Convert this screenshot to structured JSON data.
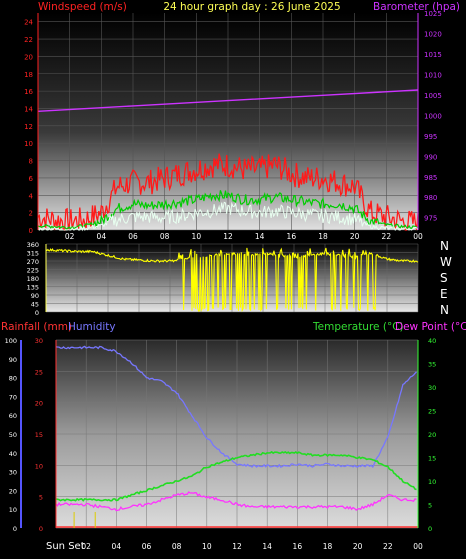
{
  "colors": {
    "wind_gust": "#ff1a1a",
    "wind_avg": "#00cc00",
    "wind_min": "#e8fff0",
    "barometer": "#cc33ff",
    "direction": "#ffff00",
    "humidity": "#7777ff",
    "temperature": "#22dd22",
    "dewpoint": "#ff33ff",
    "rain": "#ff3333",
    "title": "#ffff55",
    "axis_left_bottom": "#5555ff",
    "axis_right_bottom": "#33ff33"
  },
  "header": {
    "left": "Windspeed (m/s)",
    "center": "24 hour graph day : 26 June 2025",
    "right": "Barometer (hpa)"
  },
  "bottom_header": {
    "rain": "Rainfall (mm)",
    "humidity": "Humidity",
    "temperature": "Temperature (°C)",
    "dewpoint": "Dew Point (°C)"
  },
  "compass": [
    "N",
    "W",
    "S",
    "E",
    "N"
  ],
  "x_axis": {
    "labels": [
      "02",
      "04",
      "06",
      "08",
      "10",
      "12",
      "14",
      "16",
      "18",
      "20",
      "22",
      "00"
    ],
    "bottom_prefix": "Sun Set"
  },
  "chart_data": [
    {
      "type": "line",
      "title": "24 hour graph day : 26 June 2025",
      "x_range_hours": [
        0,
        24
      ],
      "left_axis": {
        "label": "Windspeed (m/s)",
        "ylim": [
          0,
          25
        ],
        "ticks": [
          0,
          2,
          4,
          6,
          8,
          10,
          12,
          14,
          16,
          18,
          20,
          22,
          24
        ]
      },
      "right_axis": {
        "label": "Barometer (hpa)",
        "ylim": [
          972,
          1025
        ],
        "ticks": [
          975,
          980,
          985,
          990,
          995,
          1000,
          1005,
          1010,
          1015,
          1020,
          1025
        ]
      },
      "series": [
        {
          "key": "gust",
          "x": [
            0,
            1,
            2,
            3,
            4,
            5,
            6,
            7,
            8,
            9,
            10,
            11,
            12,
            13,
            14,
            15,
            16,
            17,
            18,
            19,
            20,
            21,
            22,
            23,
            24
          ],
          "values": [
            1.5,
            1.2,
            1.0,
            1.2,
            2.0,
            5.0,
            5.5,
            5.5,
            6.0,
            6.5,
            7.0,
            7.5,
            7.5,
            7.0,
            7.0,
            7.5,
            6.5,
            6.0,
            6.0,
            5.5,
            5.0,
            2.0,
            1.5,
            1.0,
            0.8
          ]
        },
        {
          "key": "avg",
          "x": [
            0,
            1,
            2,
            3,
            4,
            5,
            6,
            7,
            8,
            9,
            10,
            11,
            12,
            13,
            14,
            15,
            16,
            17,
            18,
            19,
            20,
            21,
            22,
            23,
            24
          ],
          "values": [
            0.5,
            0.4,
            0.3,
            0.5,
            1.0,
            2.5,
            3.0,
            2.8,
            3.0,
            3.2,
            3.5,
            4.0,
            4.0,
            3.5,
            3.5,
            3.8,
            3.5,
            3.2,
            3.0,
            3.0,
            2.5,
            1.0,
            0.6,
            0.4,
            0.3
          ]
        },
        {
          "key": "min",
          "x": [
            0,
            1,
            2,
            3,
            4,
            5,
            6,
            7,
            8,
            9,
            10,
            11,
            12,
            13,
            14,
            15,
            16,
            17,
            18,
            19,
            20,
            21,
            22,
            23,
            24
          ],
          "values": [
            0.1,
            0.1,
            0.0,
            0.2,
            0.5,
            1.2,
            1.5,
            1.5,
            1.4,
            1.6,
            2.0,
            2.2,
            2.5,
            2.2,
            2.0,
            2.2,
            2.0,
            1.8,
            1.6,
            1.5,
            1.2,
            0.4,
            0.2,
            0.1,
            0.1
          ]
        },
        {
          "key": "barometer",
          "axis": "right",
          "x": [
            0,
            6,
            12,
            18,
            24
          ],
          "values": [
            1001.0,
            1002.3,
            1003.6,
            1004.9,
            1006.2
          ]
        }
      ]
    },
    {
      "type": "scatter",
      "title": "",
      "x_range_hours": [
        0,
        24
      ],
      "left_axis": {
        "ylim": [
          0,
          360
        ],
        "ticks": [
          0,
          45,
          90,
          135,
          180,
          225,
          270,
          315,
          360
        ]
      },
      "series": [
        {
          "key": "direction",
          "x": [
            0,
            1,
            2,
            3,
            4,
            5,
            6,
            7,
            8,
            9,
            10,
            11,
            12,
            13,
            14,
            15,
            16,
            17,
            18,
            19,
            20,
            21,
            22,
            23,
            24
          ],
          "values": [
            330,
            325,
            320,
            320,
            300,
            280,
            275,
            270,
            270,
            280,
            290,
            300,
            310,
            300,
            310,
            300,
            290,
            300,
            310,
            300,
            290,
            310,
            280,
            270,
            270
          ]
        }
      ]
    },
    {
      "type": "line",
      "title": "",
      "x_range_hours": [
        0,
        24
      ],
      "left_axis": {
        "label": "Rainfall (mm)",
        "ylim": [
          0,
          30
        ],
        "ticks": [
          0,
          5,
          10,
          15,
          20,
          25,
          30
        ]
      },
      "left_axis_outer": {
        "label": "Humidity",
        "ylim": [
          0,
          100
        ],
        "ticks": [
          0,
          10,
          20,
          30,
          40,
          50,
          60,
          70,
          80,
          90,
          100
        ]
      },
      "right_axis": {
        "label": "Temperature (°C)",
        "ylim": [
          0,
          40
        ],
        "ticks": [
          0,
          5,
          10,
          15,
          20,
          25,
          30,
          35,
          40
        ]
      },
      "series": [
        {
          "key": "humidity",
          "axis": "outer",
          "x": [
            0,
            1,
            2,
            3,
            4,
            5,
            6,
            7,
            8,
            9,
            10,
            11,
            12,
            13,
            14,
            15,
            16,
            17,
            18,
            19,
            20,
            21,
            22,
            23,
            24
          ],
          "values": [
            96,
            96,
            96,
            96,
            94,
            88,
            80,
            78,
            72,
            60,
            48,
            40,
            34,
            33,
            33,
            33,
            34,
            33,
            34,
            33,
            33,
            33,
            48,
            76,
            84
          ]
        },
        {
          "key": "temperature",
          "axis": "right",
          "x": [
            0,
            1,
            2,
            3,
            4,
            5,
            6,
            7,
            8,
            9,
            10,
            11,
            12,
            13,
            14,
            15,
            16,
            17,
            18,
            19,
            20,
            21,
            22,
            23,
            24
          ],
          "values": [
            6,
            6,
            6,
            6,
            6,
            7,
            8,
            9,
            10,
            11,
            13,
            14,
            15,
            15.5,
            16,
            16,
            16,
            15.5,
            15.5,
            15.5,
            15,
            14.5,
            13,
            10,
            8
          ]
        },
        {
          "key": "dewpoint",
          "axis": "right",
          "x": [
            0,
            1,
            2,
            3,
            4,
            5,
            6,
            7,
            8,
            9,
            10,
            11,
            12,
            13,
            14,
            15,
            16,
            17,
            18,
            19,
            20,
            21,
            22,
            23,
            24
          ],
          "values": [
            5,
            5,
            5,
            4.5,
            4,
            4.5,
            5,
            6,
            7,
            7.5,
            6.5,
            6,
            5,
            4.5,
            4.5,
            4.5,
            4.5,
            4.5,
            4.5,
            4.5,
            4,
            5,
            7,
            6,
            6
          ]
        },
        {
          "key": "rain",
          "axis": "left",
          "x": [
            0,
            24
          ],
          "values": [
            0,
            0
          ]
        }
      ]
    }
  ]
}
